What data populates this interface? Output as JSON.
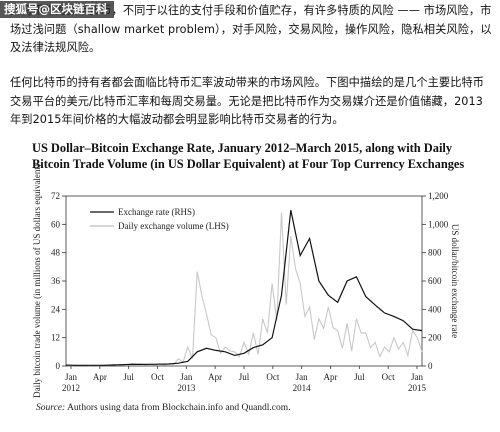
{
  "watermark": "搜狐号@区块链百科",
  "paragraph1": "比特币作为数字货币，不同于以往的支付手段和价值贮存，有许多特质的风险 —— 市场风险，市场过浅问题（shallow market problem），对手风险，交易风险，操作风险，隐私相关风险，以及法律法规风险。",
  "paragraph2": "任何比特币的持有者都会面临比特币汇率波动带来的市场风险。下图中描绘的是几个主要比特币交易平台的美元/比特币汇率和每周交易量。无论是把比特币作为交易媒介还是价值储藏，2013年到2015年间价格的大幅波动都会明显影响比特币交易者的行为。",
  "figure_title": "US Dollar–Bitcoin Exchange Rate, January 2012–March 2015, along with Daily Bitcoin Trade Volume (in US Dollar Equivalent) at Four Top Currency Exchanges",
  "source_label": "Source:",
  "source_text": "Authors using data from Blockchain.info and Quandl.com.",
  "chart_data": {
    "type": "line",
    "title": "US Dollar–Bitcoin Exchange Rate, January 2012–March 2015, along with Daily Bitcoin Trade Volume (in US Dollar Equivalent) at Four Top Currency Exchanges",
    "ylabel_left": "Daily bitcoin trade volume (in millions of US dollars equivalent)",
    "ylabel_right": "US dollar/bitcoin exchange rate",
    "ylim_left": [
      0,
      72
    ],
    "ylim_right": [
      0,
      1200
    ],
    "yticks_left": [
      "0",
      "12",
      "24",
      "36",
      "48",
      "60",
      "72"
    ],
    "yticks_right": [
      "0",
      "200",
      "400",
      "600",
      "800",
      "1,000",
      "1,200"
    ],
    "xticks": [
      "Jan",
      "Apr",
      "Jul",
      "Oct",
      "Jan",
      "Apr",
      "Jul",
      "Oct",
      "Jan",
      "Apr",
      "Jul",
      "Oct",
      "Jan"
    ],
    "xtick_years": [
      "2012",
      "2013",
      "2014",
      "2015"
    ],
    "legend": [
      "Exchange rate (RHS)",
      "Daily exchange volume (LHS)"
    ],
    "legend_position": "top-left",
    "colors": {
      "exchange_rate": "#111111",
      "volume": "#c8c8c8"
    },
    "series": [
      {
        "name": "Exchange rate (RHS)",
        "axis": "right",
        "x": [
          0,
          1,
          2,
          3,
          4,
          5,
          6,
          7,
          8,
          9,
          10,
          11,
          12,
          13,
          14,
          15,
          16,
          17,
          18,
          19,
          20,
          21,
          22,
          23,
          24,
          25,
          26,
          27,
          28,
          29,
          30,
          31,
          32,
          33,
          34,
          35,
          36,
          37,
          38
        ],
        "values": [
          6,
          5,
          5,
          5,
          5,
          7,
          9,
          12,
          11,
          12,
          13,
          14,
          20,
          33,
          100,
          125,
          110,
          100,
          75,
          90,
          130,
          150,
          200,
          500,
          1100,
          780,
          900,
          600,
          500,
          450,
          600,
          630,
          490,
          430,
          375,
          350,
          320,
          260,
          250
        ]
      },
      {
        "name": "Daily exchange volume (LHS)",
        "axis": "left",
        "x": [
          0,
          1,
          2,
          3,
          4,
          5,
          6,
          7,
          8,
          9,
          10,
          11,
          12,
          13,
          14,
          15,
          16,
          17,
          18,
          19,
          20,
          21,
          22,
          23,
          24,
          25,
          26,
          27,
          28,
          29,
          30,
          31,
          32,
          33,
          34,
          35,
          36,
          37,
          38
        ],
        "values": [
          0.3,
          0.3,
          0.3,
          0.3,
          0.4,
          0.5,
          0.6,
          1,
          0.8,
          0.9,
          1,
          1,
          3,
          8,
          40,
          22,
          12,
          8,
          6,
          10,
          14,
          20,
          35,
          65,
          55,
          35,
          25,
          20,
          25,
          15,
          18,
          20,
          14,
          10,
          8,
          12,
          10,
          15,
          6
        ]
      }
    ]
  }
}
